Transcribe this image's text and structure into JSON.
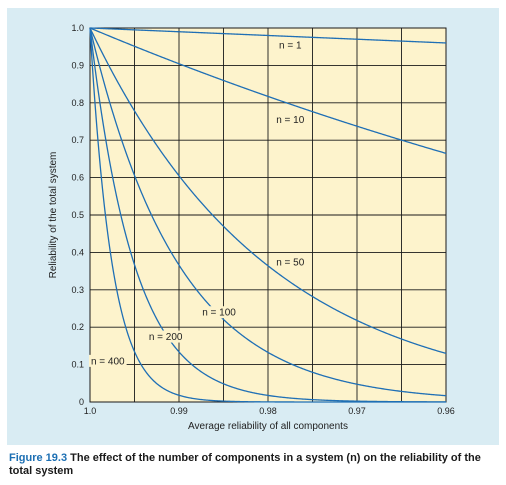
{
  "caption": {
    "number": "Figure 19.3",
    "text": "The effect of the number of components in a system (n) on the reliability of the total system"
  },
  "colors": {
    "plot_background": "#fdf3cc",
    "panel_background": "#d9ecf3",
    "curve": "#1f6fb5",
    "grid": "#1a1a1a",
    "caption_label": "#1c6fb3"
  },
  "chart_data": {
    "type": "line",
    "xlabel": "Average reliability of all components",
    "ylabel": "Reliability of the total system",
    "xlim": [
      1.0,
      0.96
    ],
    "ylim": [
      0,
      1.0
    ],
    "x_ticks": [
      1.0,
      0.99,
      0.98,
      0.97,
      0.96
    ],
    "x_tick_labels": [
      "1.0",
      "0.99",
      "0.98",
      "0.97",
      "0.96"
    ],
    "y_ticks": [
      0,
      0.1,
      0.2,
      0.3,
      0.4,
      0.5,
      0.6,
      0.7,
      0.8,
      0.9,
      1.0
    ],
    "y_tick_labels": [
      "0",
      "0.1",
      "0.2",
      "0.3",
      "0.4",
      "0.5",
      "0.6",
      "0.7",
      "0.8",
      "0.9",
      "1.0"
    ],
    "grid": true,
    "x_grid_step": 0.005,
    "y_grid_step": 0.1,
    "series": [
      {
        "name": "n = 1",
        "n": 1,
        "label": "n = 1",
        "label_x": 0.9775,
        "label_y": 0.955
      },
      {
        "name": "n = 10",
        "n": 10,
        "label": "n = 10",
        "label_x": 0.9775,
        "label_y": 0.755
      },
      {
        "name": "n = 50",
        "n": 50,
        "label": "n = 50",
        "label_x": 0.9775,
        "label_y": 0.375
      },
      {
        "name": "n = 100",
        "n": 100,
        "label": "n = 100",
        "label_x": 0.9855,
        "label_y": 0.24
      },
      {
        "name": "n = 200",
        "n": 200,
        "label": "n = 200",
        "label_x": 0.9915,
        "label_y": 0.175
      },
      {
        "name": "n = 400",
        "n": 400,
        "label": "n = 400",
        "label_x": 0.998,
        "label_y": 0.11
      }
    ]
  }
}
